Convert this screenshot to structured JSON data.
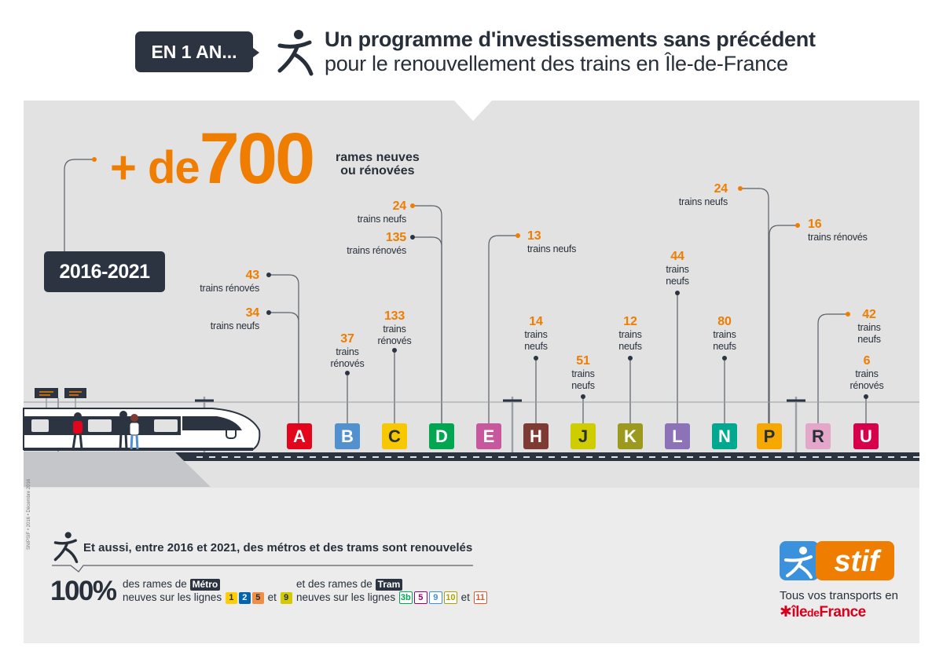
{
  "header": {
    "badge": "EN 1 AN...",
    "title_line1": "Un programme d'investissements sans précédent",
    "title_line2": "pour le renouvellement des trains en Île-de-France"
  },
  "highlight": {
    "prefix": "+ de",
    "number": "700",
    "caption_line1": "rames neuves",
    "caption_line2": "ou rénovées",
    "period": "2016-2021"
  },
  "lines": [
    {
      "letter": "A",
      "color": "#e3051b",
      "labels": [
        {
          "value": "43",
          "text": "trains rénovés"
        },
        {
          "value": "34",
          "text": "trains neufs"
        }
      ]
    },
    {
      "letter": "B",
      "color": "#5291ce",
      "labels": [
        {
          "value": "37",
          "text": "trains rénovés"
        }
      ]
    },
    {
      "letter": "C",
      "color": "#f7c800",
      "labels": [
        {
          "value": "133",
          "text": "trains rénovés"
        }
      ]
    },
    {
      "letter": "D",
      "color": "#00a650",
      "labels": [
        {
          "value": "24",
          "text": "trains neufs"
        },
        {
          "value": "135",
          "text": "trains rénovés"
        }
      ]
    },
    {
      "letter": "E",
      "color": "#c8589d",
      "labels": [
        {
          "value": "13",
          "text": "trains neufs"
        }
      ]
    },
    {
      "letter": "H",
      "color": "#7d3b34",
      "labels": [
        {
          "value": "14",
          "text": "trains neufs"
        }
      ]
    },
    {
      "letter": "J",
      "color": "#cfcd00",
      "labels": [
        {
          "value": "51",
          "text": "trains neufs"
        }
      ]
    },
    {
      "letter": "K",
      "color": "#9b9a1e",
      "labels": [
        {
          "value": "12",
          "text": "trains neufs"
        }
      ]
    },
    {
      "letter": "L",
      "color": "#8c72b6",
      "labels": [
        {
          "value": "44",
          "text": "trains neufs"
        }
      ]
    },
    {
      "letter": "N",
      "color": "#00a88f",
      "labels": [
        {
          "value": "80",
          "text": "trains neufs"
        }
      ]
    },
    {
      "letter": "P",
      "color": "#f6a800",
      "labels": [
        {
          "value": "24",
          "text": "trains neufs"
        },
        {
          "value": "16",
          "text": "trains rénovés"
        }
      ]
    },
    {
      "letter": "R",
      "color": "#e4a7c9",
      "labels": [
        {
          "value": "42",
          "text": "trains neufs"
        }
      ]
    },
    {
      "letter": "U",
      "color": "#d6004b",
      "labels": [
        {
          "value": "6",
          "text": "trains rénovés"
        }
      ]
    }
  ],
  "bottom": {
    "also_text": "Et aussi, entre 2016 et 2021, des métros et des trams sont renouvelés",
    "percent": "100%",
    "metro_pre": "des rames de",
    "metro_tag": "Métro",
    "metro_post": "neuves sur les lignes",
    "metro_lines": [
      {
        "label": "1",
        "color": "#ffcd00"
      },
      {
        "label": "2",
        "color": "#0064b0"
      },
      {
        "label": "5",
        "color": "#f28e42"
      },
      {
        "label": "9",
        "color": "#d5c900"
      }
    ],
    "tram_pre": "et des rames de",
    "tram_tag": "Tram",
    "tram_post": "neuves sur les lignes",
    "tram_lines": [
      {
        "label": "3b",
        "color": "#00a650"
      },
      {
        "label": "5",
        "color": "#a0006e"
      },
      {
        "label": "9",
        "color": "#3c91dc"
      },
      {
        "label": "10",
        "color": "#ad9f00"
      },
      {
        "label": "11",
        "color": "#e4572e"
      }
    ],
    "and_word": "et"
  },
  "logo": {
    "brand": "stif",
    "slogan": "Tous vos transports en",
    "region_pre": "île",
    "region_mid": "de",
    "region_post": "France"
  },
  "footnote": "SNIPSIF • 2016 • Décembre 2016"
}
